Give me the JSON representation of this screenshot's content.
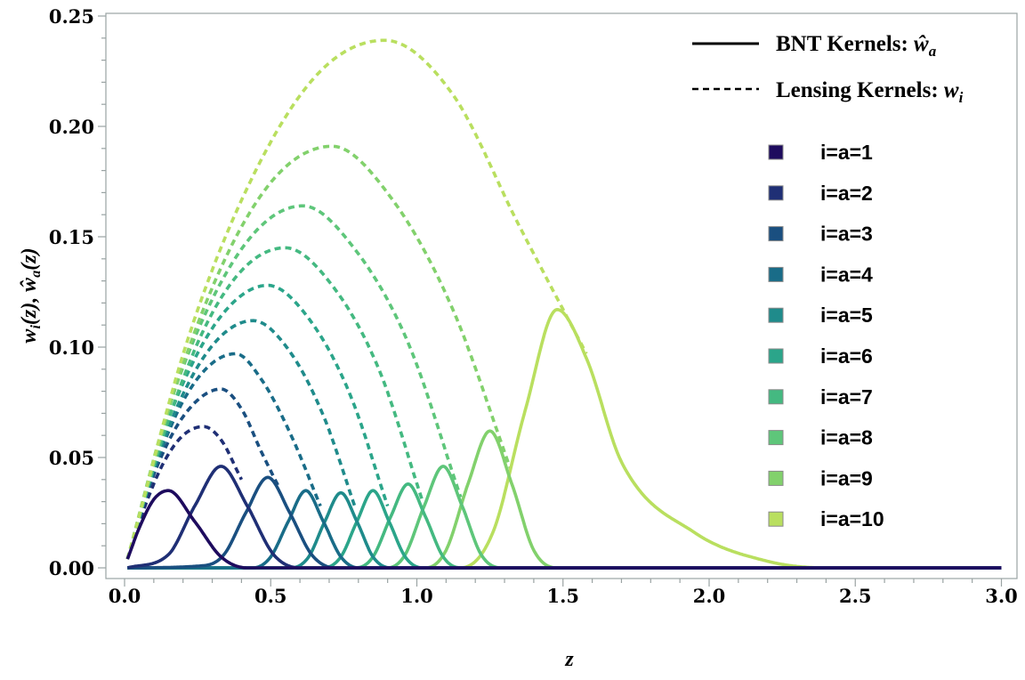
{
  "chart_data": {
    "type": "line",
    "xlabel": "z",
    "ylabel": "w_i(z), ŵ_a(z)",
    "ylabel_parts": {
      "w": "w",
      "i": "i",
      "z1": "(z), ",
      "what": "ŵ",
      "a": "a",
      "z2": "(z)"
    },
    "xlim": [
      0.0,
      3.0
    ],
    "ylim": [
      0.0,
      0.25
    ],
    "xticks": [
      "0.0",
      "0.5",
      "1.0",
      "1.5",
      "2.0",
      "2.5",
      "3.0"
    ],
    "yticks": [
      "0.00",
      "0.05",
      "0.10",
      "0.15",
      "0.20",
      "0.25"
    ],
    "grid": false,
    "legend_position": "top-right",
    "style_legend": [
      {
        "style": "solid",
        "label": "BNT Kernels: ",
        "symbol": "ŵ",
        "sub": "a"
      },
      {
        "style": "dashed",
        "label": "Lensing Kernels: ",
        "symbol": "w",
        "sub": "i"
      }
    ],
    "colors": [
      "#1e0b5e",
      "#1f2f75",
      "#1a4f80",
      "#196c88",
      "#1f8b8b",
      "#2ba58a",
      "#44b981",
      "#5ec67a",
      "#82d16c",
      "#b9df5f"
    ],
    "legend_labels": [
      "i=a=1",
      "i=a=2",
      "i=a=3",
      "i=a=4",
      "i=a=5",
      "i=a=6",
      "i=a=7",
      "i=a=8",
      "i=a=9",
      "i=a=10"
    ],
    "bnt_kernels": [
      {
        "a": 1,
        "points": [
          [
            0.01,
            0.004
          ],
          [
            0.05,
            0.018
          ],
          [
            0.1,
            0.031
          ],
          [
            0.15,
            0.035
          ],
          [
            0.24,
            0.021
          ],
          [
            0.33,
            0.005
          ],
          [
            0.42,
            0.0
          ],
          [
            3.0,
            0.0
          ]
        ]
      },
      {
        "a": 2,
        "points": [
          [
            0.01,
            0.0
          ],
          [
            0.15,
            0.006
          ],
          [
            0.24,
            0.028
          ],
          [
            0.33,
            0.046
          ],
          [
            0.42,
            0.028
          ],
          [
            0.51,
            0.006
          ],
          [
            0.6,
            0.0
          ],
          [
            3.0,
            0.0
          ]
        ]
      },
      {
        "a": 3,
        "points": [
          [
            0.01,
            0.0
          ],
          [
            0.27,
            0.001
          ],
          [
            0.34,
            0.006
          ],
          [
            0.415,
            0.025
          ],
          [
            0.49,
            0.041
          ],
          [
            0.565,
            0.025
          ],
          [
            0.64,
            0.006
          ],
          [
            0.72,
            0.0
          ],
          [
            3.0,
            0.0
          ]
        ]
      },
      {
        "a": 4,
        "points": [
          [
            0.01,
            0.0
          ],
          [
            0.44,
            0.0
          ],
          [
            0.5,
            0.005
          ],
          [
            0.56,
            0.021
          ],
          [
            0.62,
            0.035
          ],
          [
            0.68,
            0.021
          ],
          [
            0.74,
            0.005
          ],
          [
            0.8,
            0.0
          ],
          [
            3.0,
            0.0
          ]
        ]
      },
      {
        "a": 5,
        "points": [
          [
            0.01,
            0.0
          ],
          [
            0.57,
            0.0
          ],
          [
            0.63,
            0.005
          ],
          [
            0.685,
            0.021
          ],
          [
            0.74,
            0.034
          ],
          [
            0.795,
            0.021
          ],
          [
            0.85,
            0.005
          ],
          [
            0.91,
            0.0
          ],
          [
            3.0,
            0.0
          ]
        ]
      },
      {
        "a": 6,
        "points": [
          [
            0.01,
            0.0
          ],
          [
            0.68,
            0.0
          ],
          [
            0.74,
            0.005
          ],
          [
            0.795,
            0.021
          ],
          [
            0.85,
            0.035
          ],
          [
            0.905,
            0.021
          ],
          [
            0.96,
            0.005
          ],
          [
            1.02,
            0.0
          ],
          [
            3.0,
            0.0
          ]
        ]
      },
      {
        "a": 7,
        "points": [
          [
            0.01,
            0.0
          ],
          [
            0.79,
            0.0
          ],
          [
            0.85,
            0.005
          ],
          [
            0.91,
            0.023
          ],
          [
            0.97,
            0.038
          ],
          [
            1.03,
            0.023
          ],
          [
            1.09,
            0.005
          ],
          [
            1.15,
            0.0
          ],
          [
            3.0,
            0.0
          ]
        ]
      },
      {
        "a": 8,
        "points": [
          [
            0.01,
            0.0
          ],
          [
            0.9,
            0.0
          ],
          [
            0.96,
            0.006
          ],
          [
            1.025,
            0.028
          ],
          [
            1.09,
            0.046
          ],
          [
            1.155,
            0.028
          ],
          [
            1.22,
            0.006
          ],
          [
            1.29,
            0.0
          ],
          [
            3.0,
            0.0
          ]
        ]
      },
      {
        "a": 9,
        "points": [
          [
            0.01,
            0.0
          ],
          [
            1.03,
            0.0
          ],
          [
            1.1,
            0.008
          ],
          [
            1.175,
            0.038
          ],
          [
            1.25,
            0.062
          ],
          [
            1.325,
            0.038
          ],
          [
            1.4,
            0.008
          ],
          [
            1.48,
            0.0
          ],
          [
            3.0,
            0.0
          ]
        ]
      },
      {
        "a": 10,
        "points": [
          [
            0.01,
            0.0
          ],
          [
            1.15,
            0.0
          ],
          [
            1.26,
            0.016
          ],
          [
            1.37,
            0.071
          ],
          [
            1.48,
            0.117
          ],
          [
            1.58,
            0.095
          ],
          [
            1.7,
            0.048
          ],
          [
            1.95,
            0.016
          ],
          [
            2.2,
            0.003
          ],
          [
            2.4,
            0.0
          ],
          [
            3.0,
            0.0
          ]
        ]
      }
    ],
    "lensing_kernels": [
      {
        "i": 2,
        "points": [
          [
            0.01,
            0.004
          ],
          [
            0.07,
            0.028
          ],
          [
            0.135,
            0.048
          ],
          [
            0.2,
            0.06
          ],
          [
            0.27,
            0.064
          ],
          [
            0.33,
            0.058
          ],
          [
            0.4,
            0.04
          ]
        ]
      },
      {
        "i": 3,
        "points": [
          [
            0.01,
            0.004
          ],
          [
            0.08,
            0.035
          ],
          [
            0.165,
            0.061
          ],
          [
            0.25,
            0.076
          ],
          [
            0.33,
            0.081
          ],
          [
            0.4,
            0.072
          ],
          [
            0.47,
            0.052
          ],
          [
            0.53,
            0.036
          ]
        ]
      },
      {
        "i": 4,
        "points": [
          [
            0.01,
            0.004
          ],
          [
            0.095,
            0.042
          ],
          [
            0.19,
            0.073
          ],
          [
            0.285,
            0.091
          ],
          [
            0.38,
            0.097
          ],
          [
            0.47,
            0.085
          ],
          [
            0.57,
            0.06
          ],
          [
            0.67,
            0.028
          ]
        ]
      },
      {
        "i": 5,
        "points": [
          [
            0.01,
            0.004
          ],
          [
            0.11,
            0.049
          ],
          [
            0.22,
            0.084
          ],
          [
            0.33,
            0.105
          ],
          [
            0.44,
            0.112
          ],
          [
            0.56,
            0.099
          ],
          [
            0.68,
            0.069
          ],
          [
            0.79,
            0.027
          ]
        ]
      },
      {
        "i": 6,
        "points": [
          [
            0.01,
            0.004
          ],
          [
            0.12,
            0.056
          ],
          [
            0.245,
            0.096
          ],
          [
            0.37,
            0.12
          ],
          [
            0.49,
            0.128
          ],
          [
            0.63,
            0.113
          ],
          [
            0.77,
            0.079
          ],
          [
            0.9,
            0.028
          ]
        ]
      },
      {
        "i": 7,
        "points": [
          [
            0.01,
            0.004
          ],
          [
            0.14,
            0.063
          ],
          [
            0.275,
            0.109
          ],
          [
            0.41,
            0.136
          ],
          [
            0.55,
            0.145
          ],
          [
            0.71,
            0.128
          ],
          [
            0.87,
            0.09
          ],
          [
            1.02,
            0.03
          ]
        ]
      },
      {
        "i": 8,
        "points": [
          [
            0.01,
            0.004
          ],
          [
            0.15,
            0.072
          ],
          [
            0.305,
            0.123
          ],
          [
            0.46,
            0.154
          ],
          [
            0.61,
            0.164
          ],
          [
            0.79,
            0.144
          ],
          [
            0.97,
            0.102
          ],
          [
            1.15,
            0.032
          ]
        ]
      },
      {
        "i": 9,
        "points": [
          [
            0.01,
            0.004
          ],
          [
            0.18,
            0.084
          ],
          [
            0.355,
            0.143
          ],
          [
            0.53,
            0.179
          ],
          [
            0.71,
            0.191
          ],
          [
            0.91,
            0.168
          ],
          [
            1.12,
            0.118
          ],
          [
            1.32,
            0.045
          ]
        ]
      },
      {
        "i": 10,
        "points": [
          [
            0.01,
            0.004
          ],
          [
            0.22,
            0.105
          ],
          [
            0.445,
            0.179
          ],
          [
            0.67,
            0.225
          ],
          [
            0.89,
            0.239
          ],
          [
            1.12,
            0.215
          ],
          [
            1.35,
            0.155
          ],
          [
            1.58,
            0.097
          ]
        ]
      }
    ]
  }
}
